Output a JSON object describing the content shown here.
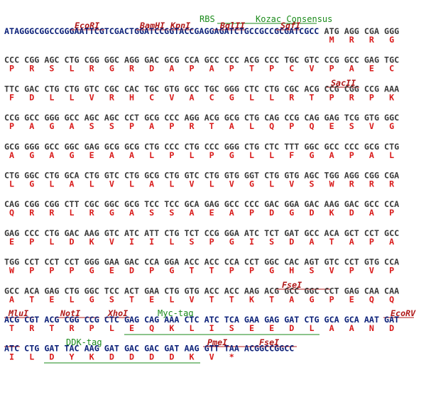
{
  "features": {
    "rbs": "RBS",
    "kozak": "Kozac Consensus",
    "ecori": "EcoRI",
    "bamhi": "BamHI",
    "kpni": "KpnI",
    "bglii": "BglII",
    "sgfi": "SgfI",
    "sacii": "SacII",
    "fsei_1": "FseI",
    "mlui": "MluI",
    "noti": "NotI",
    "xhoi": "XhoI",
    "myc_tag": "Myc-tag",
    "ecorv": "EcoRV",
    "ddk_tag": "DDK-tag",
    "pmei": "PmeI",
    "fsei_2": "FseI"
  },
  "rows": [
    {
      "prefix": "ATAGGGCGGCCGGGAATTCGTCGACTGGATCCGGTACCGAGGAGATCTGCCGCCGCGATCGCC",
      "codons": [
        "ATG",
        "AGG",
        "CGA",
        "GGG"
      ],
      "amino_acids": [
        "M",
        "R",
        "R",
        "G"
      ]
    },
    {
      "codons": [
        "CCC",
        "CGG",
        "AGC",
        "CTG",
        "CGG",
        "GGC",
        "AGG",
        "GAC",
        "GCG",
        "CCA",
        "GCC",
        "CCC",
        "ACG",
        "CCC",
        "TGC",
        "GTC",
        "CCG",
        "GCC",
        "GAG",
        "TGC"
      ],
      "amino_acids": [
        "P",
        "R",
        "S",
        "L",
        "R",
        "G",
        "R",
        "D",
        "A",
        "P",
        "A",
        "P",
        "T",
        "P",
        "C",
        "V",
        "P",
        "A",
        "E",
        "C"
      ]
    },
    {
      "codons": [
        "TTC",
        "GAC",
        "CTG",
        "CTG",
        "GTC",
        "CGC",
        "CAC",
        "TGC",
        "GTG",
        "GCC",
        "TGC",
        "GGG",
        "CTC",
        "CTG",
        "CGC",
        "ACG",
        "CCG",
        "CGG",
        "CCG",
        "AAA"
      ],
      "amino_acids": [
        "F",
        "D",
        "L",
        "L",
        "V",
        "R",
        "H",
        "C",
        "V",
        "A",
        "C",
        "G",
        "L",
        "L",
        "R",
        "T",
        "P",
        "R",
        "P",
        "K"
      ]
    },
    {
      "codons": [
        "CCG",
        "GCC",
        "GGG",
        "GCC",
        "AGC",
        "AGC",
        "CCT",
        "GCG",
        "CCC",
        "AGG",
        "ACG",
        "GCG",
        "CTG",
        "CAG",
        "CCG",
        "CAG",
        "GAG",
        "TCG",
        "GTG",
        "GGC"
      ],
      "amino_acids": [
        "P",
        "A",
        "G",
        "A",
        "S",
        "S",
        "P",
        "A",
        "P",
        "R",
        "T",
        "A",
        "L",
        "Q",
        "P",
        "Q",
        "E",
        "S",
        "V",
        "G"
      ]
    },
    {
      "codons": [
        "GCG",
        "GGG",
        "GCC",
        "GGC",
        "GAG",
        "GCG",
        "GCG",
        "CTG",
        "CCC",
        "CTG",
        "CCC",
        "GGG",
        "CTG",
        "CTC",
        "TTT",
        "GGC",
        "GCC",
        "CCC",
        "GCG",
        "CTG"
      ],
      "amino_acids": [
        "A",
        "G",
        "A",
        "G",
        "E",
        "A",
        "A",
        "L",
        "P",
        "L",
        "P",
        "G",
        "L",
        "L",
        "F",
        "G",
        "A",
        "P",
        "A",
        "L"
      ]
    },
    {
      "codons": [
        "CTG",
        "GGC",
        "CTG",
        "GCA",
        "CTG",
        "GTC",
        "CTG",
        "GCG",
        "CTG",
        "GTC",
        "CTG",
        "GTG",
        "GGT",
        "CTG",
        "GTG",
        "AGC",
        "TGG",
        "AGG",
        "CGG",
        "CGA"
      ],
      "amino_acids": [
        "L",
        "G",
        "L",
        "A",
        "L",
        "V",
        "L",
        "A",
        "L",
        "V",
        "L",
        "V",
        "G",
        "L",
        "V",
        "S",
        "W",
        "R",
        "R",
        "R"
      ]
    },
    {
      "codons": [
        "CAG",
        "CGG",
        "CGG",
        "CTT",
        "CGC",
        "GGC",
        "GCG",
        "TCC",
        "TCC",
        "GCA",
        "GAG",
        "GCC",
        "CCC",
        "GAC",
        "GGA",
        "GAC",
        "AAG",
        "GAC",
        "GCC",
        "CCA"
      ],
      "amino_acids": [
        "Q",
        "R",
        "R",
        "L",
        "R",
        "G",
        "A",
        "S",
        "S",
        "A",
        "E",
        "A",
        "P",
        "D",
        "G",
        "D",
        "K",
        "D",
        "A",
        "P"
      ]
    },
    {
      "codons": [
        "GAG",
        "CCC",
        "CTG",
        "GAC",
        "AAG",
        "GTC",
        "ATC",
        "ATT",
        "CTG",
        "TCT",
        "CCG",
        "GGA",
        "ATC",
        "TCT",
        "GAT",
        "GCC",
        "ACA",
        "GCT",
        "CCT",
        "GCC"
      ],
      "amino_acids": [
        "E",
        "P",
        "L",
        "D",
        "K",
        "V",
        "I",
        "I",
        "L",
        "S",
        "P",
        "G",
        "I",
        "S",
        "D",
        "A",
        "T",
        "A",
        "P",
        "A"
      ]
    },
    {
      "codons": [
        "TGG",
        "CCT",
        "CCT",
        "CCT",
        "GGG",
        "GAA",
        "GAC",
        "CCA",
        "GGA",
        "ACC",
        "ACC",
        "CCA",
        "CCT",
        "GGC",
        "CAC",
        "AGT",
        "GTC",
        "CCT",
        "GTG",
        "CCA"
      ],
      "amino_acids": [
        "W",
        "P",
        "P",
        "P",
        "G",
        "E",
        "D",
        "P",
        "G",
        "T",
        "T",
        "P",
        "P",
        "G",
        "H",
        "S",
        "V",
        "P",
        "V",
        "P"
      ]
    },
    {
      "codons": [
        "GCC",
        "ACA",
        "GAG",
        "CTG",
        "GGC",
        "TCC",
        "ACT",
        "GAA",
        "CTG",
        "GTG",
        "ACC",
        "ACC",
        "AAG",
        "ACG",
        "GCC",
        "GGC",
        "CCT",
        "GAG",
        "CAA",
        "CAA"
      ],
      "amino_acids": [
        "A",
        "T",
        "E",
        "L",
        "G",
        "S",
        "T",
        "E",
        "L",
        "V",
        "T",
        "T",
        "K",
        "T",
        "A",
        "G",
        "P",
        "E",
        "Q",
        "Q"
      ]
    },
    {
      "codons": [
        "ACG",
        "CGT",
        "ACG",
        "CGG",
        "CCG",
        "CTC",
        "GAG",
        "CAG",
        "AAA",
        "CTC",
        "ATC",
        "TCA",
        "GAA",
        "GAG",
        "GAT",
        "CTG",
        "GCA",
        "GCA",
        "AAT",
        "GAT"
      ],
      "amino_acids": [
        "T",
        "R",
        "T",
        "R",
        "P",
        "L",
        "E",
        "Q",
        "K",
        "L",
        "I",
        "S",
        "E",
        "E",
        "D",
        "L",
        "A",
        "A",
        "N",
        "D"
      ]
    },
    {
      "codons": [
        "ATC",
        "CTG",
        "GAT",
        "TAC",
        "AAG",
        "GAT",
        "GAC",
        "GAC",
        "GAT",
        "AAG",
        "GTT",
        "TAA"
      ],
      "amino_acids": [
        "I",
        "L",
        "D",
        "Y",
        "K",
        "D",
        "D",
        "D",
        "D",
        "K",
        "V",
        "*"
      ],
      "suffix": "ACGGCCGGCC"
    }
  ]
}
